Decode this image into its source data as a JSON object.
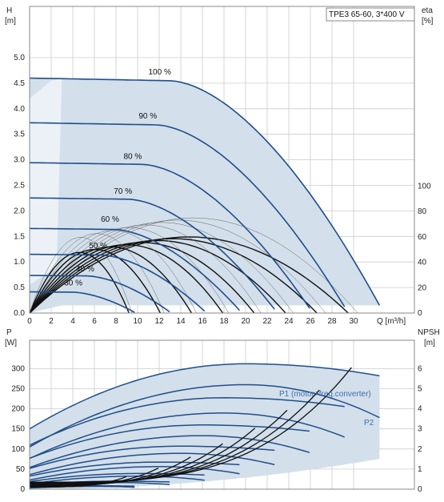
{
  "chart_data": [
    {
      "type": "line",
      "title": "TPE3 65-60, 3*400 V",
      "xlabel": "Q [m³/h]",
      "ylabel_left": "H\n[m]",
      "ylabel_right": "eta\n[%]",
      "xlim": [
        0,
        32
      ],
      "ylim": [
        0,
        5.5
      ],
      "ylim_right": [
        0,
        160
      ],
      "x_ticks": [
        0,
        2,
        4,
        6,
        8,
        10,
        12,
        14,
        16,
        18,
        20,
        22,
        24,
        26,
        28,
        30
      ],
      "y_ticks": [
        0.0,
        0.5,
        1.0,
        1.5,
        2.0,
        2.5,
        3.0,
        3.5,
        4.0,
        4.5,
        5.0
      ],
      "y_tick_labels": [
        "0.0",
        "0.5",
        "1.0",
        "1.5",
        "2.0",
        "2.5",
        "3.0",
        "3.5",
        "4.0",
        "4.5",
        "5.0"
      ],
      "y_right_ticks": [
        0,
        20,
        40,
        60,
        80,
        100
      ],
      "grid": true,
      "series": [
        {
          "name": "100 %",
          "speed": 1.0
        },
        {
          "name": "90 %",
          "speed": 0.9
        },
        {
          "name": "80 %",
          "speed": 0.8
        },
        {
          "name": "70 %",
          "speed": 0.7
        },
        {
          "name": "60 %",
          "speed": 0.6
        },
        {
          "name": "50 %",
          "speed": 0.5
        },
        {
          "name": "40 %",
          "speed": 0.4
        },
        {
          "name": "30 %",
          "speed": 0.3
        }
      ],
      "base_curve": {
        "H0": 4.6,
        "Qflat": 13,
        "Qmax": 32.4,
        "Hend": 0.15
      },
      "eta_curves": {
        "eta_peak": 60,
        "Q_peak": 20,
        "Q_end": 29
      },
      "colors": {
        "curve": "#1f4e8c",
        "fill": "#d3dfea",
        "grid": "#cccccc",
        "eta": "#111111"
      }
    },
    {
      "type": "line",
      "title": "",
      "xlabel": "",
      "ylabel_left": "P\n[W]",
      "ylabel_right": "NPSH\n[m]",
      "xlim": [
        0,
        32
      ],
      "ylim": [
        0,
        350
      ],
      "ylim_right": [
        0,
        7
      ],
      "y_ticks": [
        0,
        50,
        100,
        150,
        200,
        250,
        300
      ],
      "y_right_ticks": [
        0,
        1,
        2,
        3,
        4,
        5,
        6
      ],
      "grid": true,
      "annotations": [
        "P1 (motor+freq.converter)",
        "P2"
      ],
      "p1_top": {
        "P0": 150,
        "Ppeak": 312,
        "Qpeak": 20,
        "Pend": 282,
        "Qend": 32.4
      },
      "p2_top": {
        "P0": 105,
        "Ppeak": 260,
        "Qpeak": 20,
        "Pend": 178,
        "Qend": 32.4
      },
      "colors": {
        "curve": "#1f4e8c",
        "fill": "#d3dfea",
        "grid": "#cccccc",
        "npsh": "#111111"
      }
    }
  ]
}
